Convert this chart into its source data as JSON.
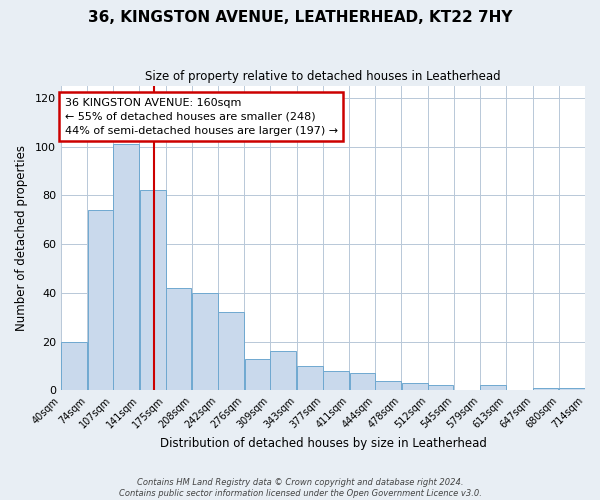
{
  "title": "36, KINGSTON AVENUE, LEATHERHEAD, KT22 7HY",
  "subtitle": "Size of property relative to detached houses in Leatherhead",
  "xlabel": "Distribution of detached houses by size in Leatherhead",
  "ylabel": "Number of detached properties",
  "bar_edges": [
    40,
    74,
    107,
    141,
    175,
    208,
    242,
    276,
    309,
    343,
    377,
    411,
    444,
    478,
    512,
    545,
    579,
    613,
    647,
    680,
    714
  ],
  "bar_heights": [
    20,
    74,
    101,
    82,
    42,
    40,
    32,
    13,
    16,
    10,
    8,
    7,
    4,
    3,
    2,
    0,
    2,
    0,
    1,
    1
  ],
  "bar_color": "#c9d9ec",
  "bar_edgecolor": "#6fa8d0",
  "ylim": [
    0,
    125
  ],
  "yticks": [
    0,
    20,
    40,
    60,
    80,
    100,
    120
  ],
  "property_size": 160,
  "vline_color": "#cc0000",
  "annotation_text": "36 KINGSTON AVENUE: 160sqm\n← 55% of detached houses are smaller (248)\n44% of semi-detached houses are larger (197) →",
  "annotation_box_color": "#ffffff",
  "annotation_box_edgecolor": "#cc0000",
  "footer_line1": "Contains HM Land Registry data © Crown copyright and database right 2024.",
  "footer_line2": "Contains public sector information licensed under the Open Government Licence v3.0.",
  "background_color": "#e8eef4",
  "plot_background_color": "#ffffff",
  "tick_labels": [
    "40sqm",
    "74sqm",
    "107sqm",
    "141sqm",
    "175sqm",
    "208sqm",
    "242sqm",
    "276sqm",
    "309sqm",
    "343sqm",
    "377sqm",
    "411sqm",
    "444sqm",
    "478sqm",
    "512sqm",
    "545sqm",
    "579sqm",
    "613sqm",
    "647sqm",
    "680sqm",
    "714sqm"
  ]
}
